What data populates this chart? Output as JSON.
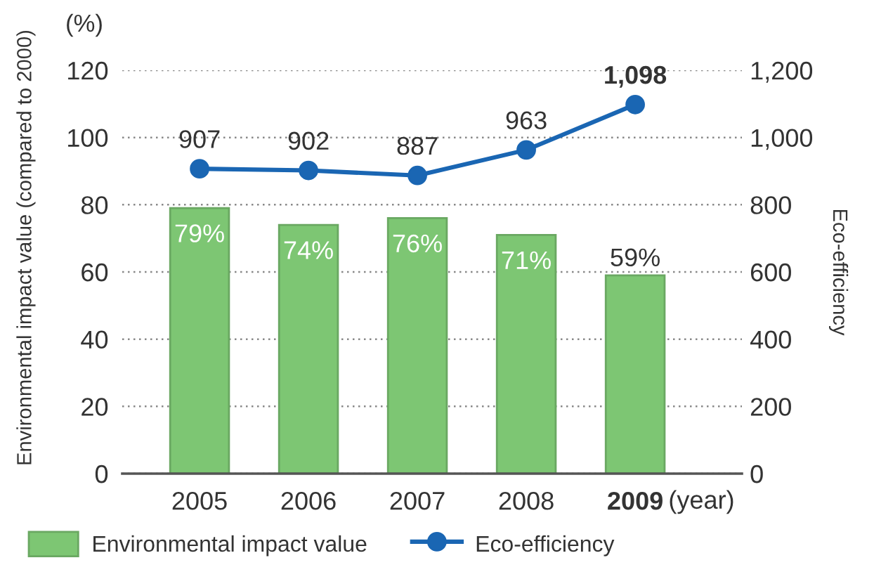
{
  "chart_data": {
    "type": "bar",
    "ylabel": "Environmental impact value (compared to 2000)",
    "y2label": "Eco-efficiency",
    "xlabel": "(year)",
    "annotations": [
      "(%)"
    ],
    "categories": [
      "2005",
      "2006",
      "2007",
      "2008",
      "2009"
    ],
    "series": [
      {
        "name": "Environmental impact value",
        "color": "#7dc673",
        "values": [
          79,
          74,
          76,
          71,
          59
        ],
        "value_labels": [
          "79%",
          "74%",
          "76%",
          "71%",
          "59%"
        ]
      },
      {
        "name": "Eco-efficiency",
        "type": "line",
        "axis": "y2",
        "color": "#1a66b3",
        "values": [
          907,
          902,
          887,
          963,
          1098
        ],
        "value_labels": [
          "907",
          "902",
          "887",
          "963",
          "1,098"
        ]
      }
    ],
    "ylim": [
      0,
      120
    ],
    "yticks": [
      0,
      20,
      40,
      60,
      80,
      100,
      120
    ],
    "y2lim": [
      0,
      1200
    ],
    "y2ticks": [
      0,
      200,
      400,
      600,
      800,
      {
        "value": 1000,
        "label": "1,000"
      },
      {
        "value": 1200,
        "label": "1,200"
      }
    ],
    "grid": "y",
    "legend": "bottom left",
    "marker": "circle",
    "line_style": "solid"
  }
}
